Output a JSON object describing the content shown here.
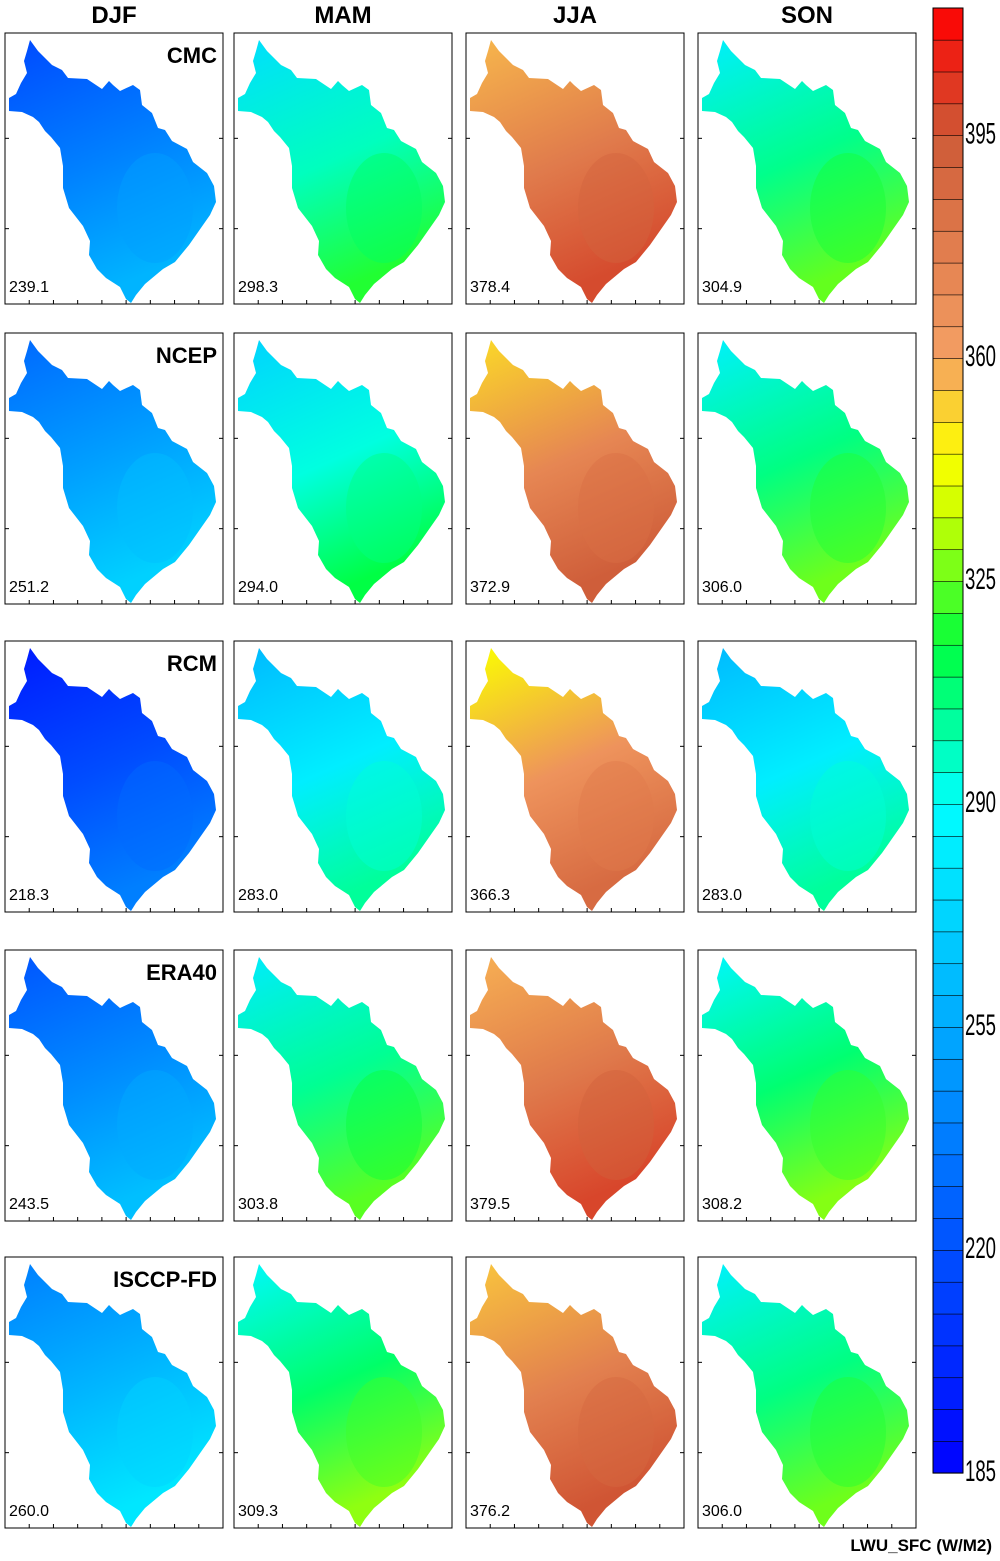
{
  "chart_data": {
    "type": "heatmap",
    "description_in_figure": "",
    "seasons": [
      "DJF",
      "MAM",
      "JJA",
      "SON"
    ],
    "datasets": [
      "CMC",
      "NCEP",
      "RCM",
      "ERA40",
      "ISCCP-FD"
    ],
    "panel_means": [
      [
        "239.1",
        "298.3",
        "378.4",
        "304.9"
      ],
      [
        "251.2",
        "294.0",
        "372.9",
        "306.0"
      ],
      [
        "218.3",
        "283.0",
        "366.3",
        "283.0"
      ],
      [
        "243.5",
        "303.8",
        "379.5",
        "308.2"
      ],
      [
        "260.0",
        "309.3",
        "376.2",
        "306.0"
      ]
    ],
    "colorbar": {
      "min": 185,
      "max": 415,
      "step": 5,
      "tick_labels": [
        "185",
        "220",
        "255",
        "290",
        "325",
        "360",
        "395"
      ],
      "units_label": "LWU_SFC (W/M2)"
    }
  },
  "colors": {
    "low": "#0000ff",
    "cyan": "#00ffff",
    "green": "#00ff00",
    "yellow": "#ffff00",
    "orange": "#f4a460",
    "high": "#ff0000"
  }
}
